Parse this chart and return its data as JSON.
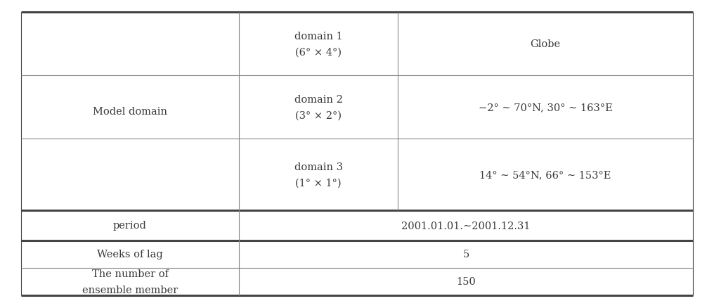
{
  "figsize": [
    10.16,
    4.39
  ],
  "dpi": 100,
  "bg_color": "#ffffff",
  "text_color": "#3a3a3a",
  "font_size": 10.5,
  "outer_lw": 2.2,
  "inner_lw": 0.8,
  "outer_color": "#444444",
  "inner_color": "#888888",
  "cells": [
    {
      "row": 0,
      "col": 0,
      "rowspan": 3,
      "colspan": 1,
      "text": "Model domain",
      "align": "center",
      "valign": "center"
    },
    {
      "row": 0,
      "col": 1,
      "rowspan": 1,
      "colspan": 1,
      "text": "domain 1\n(6° × 4°)",
      "align": "center",
      "valign": "center"
    },
    {
      "row": 0,
      "col": 2,
      "rowspan": 1,
      "colspan": 1,
      "text": "Globe",
      "align": "center",
      "valign": "center"
    },
    {
      "row": 1,
      "col": 1,
      "rowspan": 1,
      "colspan": 1,
      "text": "domain 2\n(3° × 2°)",
      "align": "center",
      "valign": "center"
    },
    {
      "row": 1,
      "col": 2,
      "rowspan": 1,
      "colspan": 1,
      "text": "−2° ∼ 70°N, 30° ∼ 163°E",
      "align": "center",
      "valign": "center"
    },
    {
      "row": 2,
      "col": 1,
      "rowspan": 1,
      "colspan": 1,
      "text": "domain 3\n(1° × 1°)",
      "align": "center",
      "valign": "center"
    },
    {
      "row": 2,
      "col": 2,
      "rowspan": 1,
      "colspan": 1,
      "text": "14° ∼ 54°N, 66° ∼ 153°E",
      "align": "center",
      "valign": "center"
    },
    {
      "row": 3,
      "col": 0,
      "rowspan": 1,
      "colspan": 1,
      "text": "period",
      "align": "center",
      "valign": "center"
    },
    {
      "row": 3,
      "col": 1,
      "rowspan": 1,
      "colspan": 2,
      "text": "2001.01.01.∼2001.12.31",
      "align": "center",
      "valign": "center"
    },
    {
      "row": 4,
      "col": 0,
      "rowspan": 1,
      "colspan": 1,
      "text": "Weeks of lag",
      "align": "center",
      "valign": "center"
    },
    {
      "row": 4,
      "col": 1,
      "rowspan": 1,
      "colspan": 2,
      "text": "5",
      "align": "center",
      "valign": "center"
    },
    {
      "row": 5,
      "col": 0,
      "rowspan": 1,
      "colspan": 1,
      "text": "The number of\nensemble member",
      "align": "center",
      "valign": "center"
    },
    {
      "row": 5,
      "col": 1,
      "rowspan": 1,
      "colspan": 2,
      "text": "150",
      "align": "center",
      "valign": "center"
    }
  ]
}
